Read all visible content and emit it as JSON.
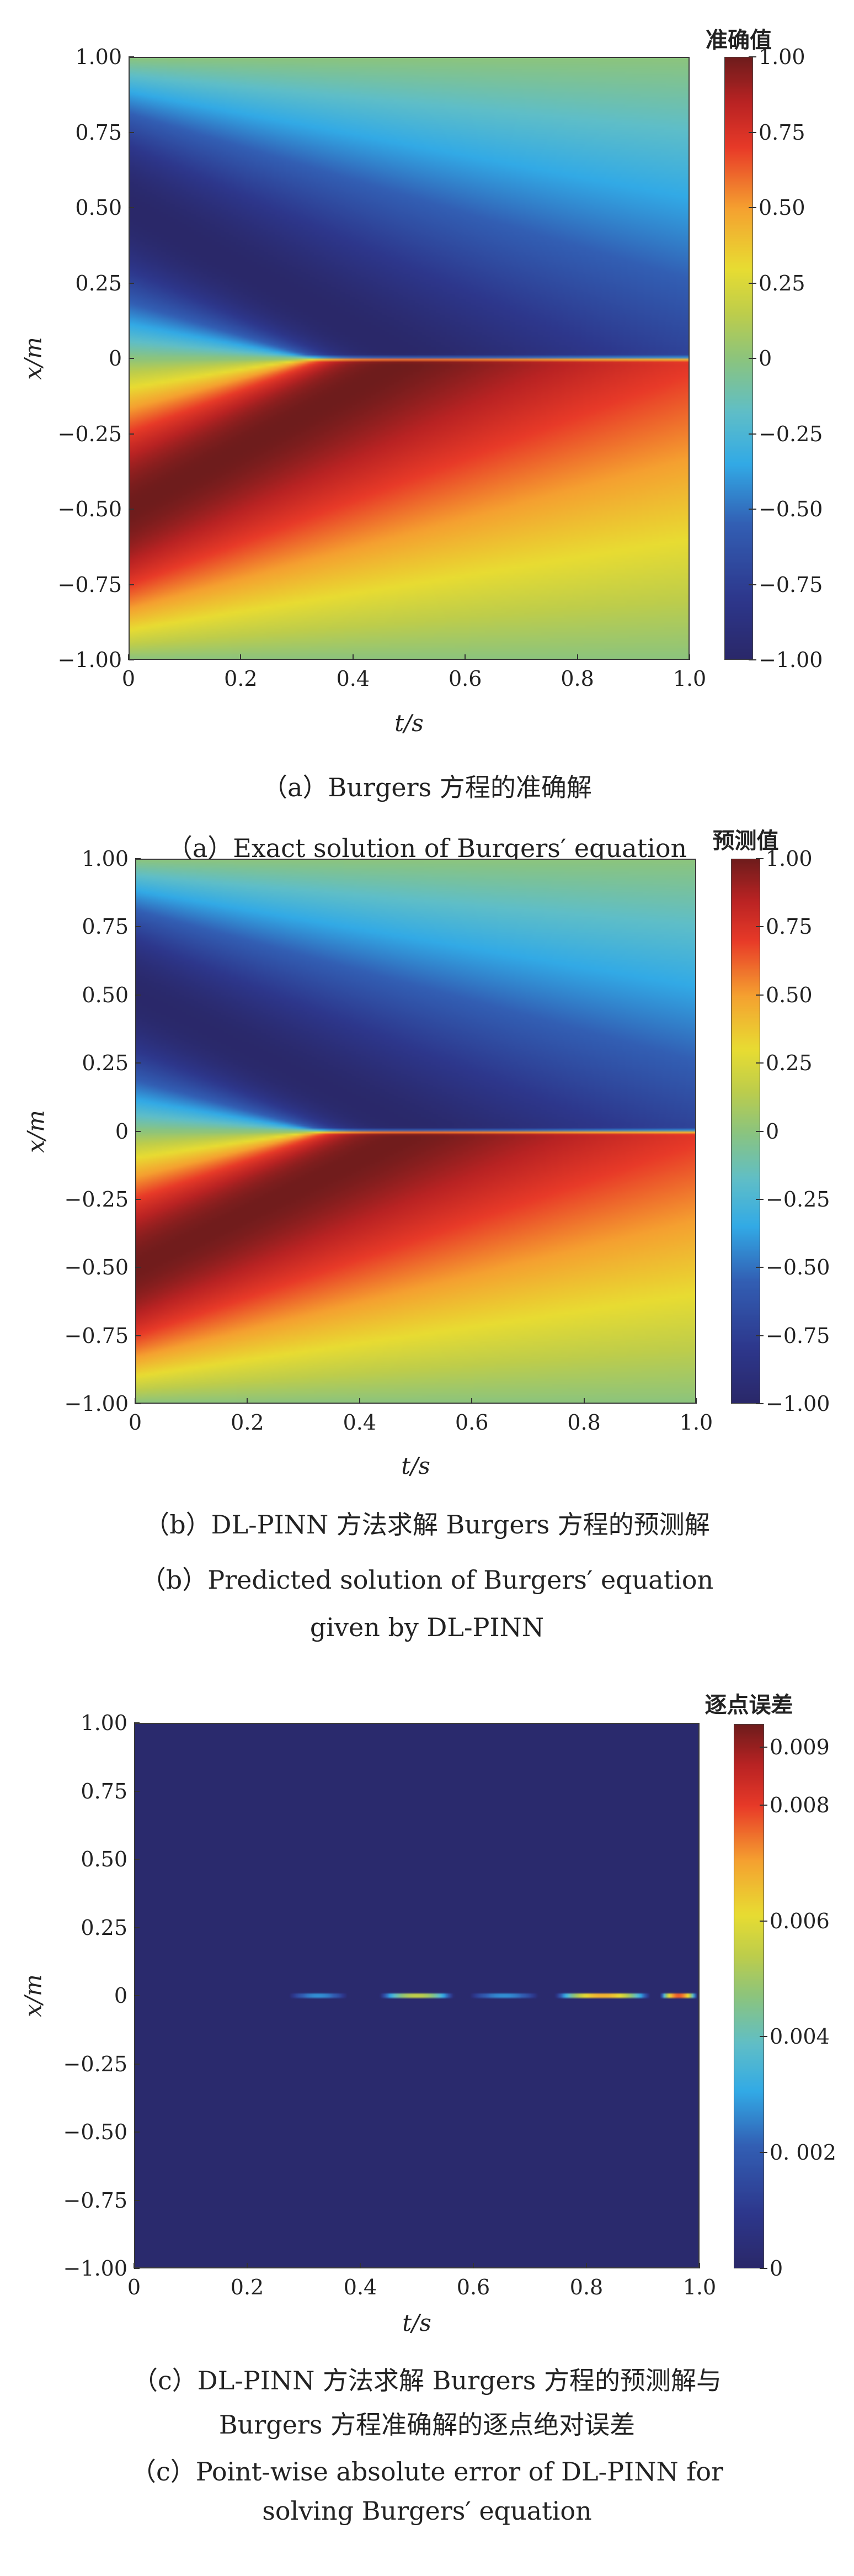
{
  "chart_data": [
    {
      "type": "heatmap",
      "id": "a",
      "xlabel": "t/s",
      "ylabel": "x/m",
      "xlim": [
        0,
        1.0
      ],
      "ylim": [
        -1.0,
        1.0
      ],
      "xticks": [
        "0",
        "0.2",
        "0.4",
        "0.6",
        "0.8",
        "1.0"
      ],
      "yticks": [
        "1.00",
        "0.75",
        "0.50",
        "0.25",
        "0",
        "−0.25",
        "−0.50",
        "−0.75",
        "−1.00"
      ],
      "colorbar": {
        "title": "准确值",
        "range": [
          -1.0,
          1.0
        ],
        "ticks": [
          "1.00",
          "0.75",
          "0.50",
          "0.25",
          "0",
          "−0.25",
          "−0.50",
          "−0.75",
          "−1.00"
        ]
      },
      "field": "burgers_exact",
      "captions": [
        "（a）Burgers 方程的准确解",
        "（a）Exact solution of Burgers′ equation"
      ]
    },
    {
      "type": "heatmap",
      "id": "b",
      "xlabel": "t/s",
      "ylabel": "x/m",
      "xlim": [
        0,
        1.0
      ],
      "ylim": [
        -1.0,
        1.0
      ],
      "xticks": [
        "0",
        "0.2",
        "0.4",
        "0.6",
        "0.8",
        "1.0"
      ],
      "yticks": [
        "1.00",
        "0.75",
        "0.50",
        "0.25",
        "0",
        "−0.25",
        "−0.50",
        "−0.75",
        "−1.00"
      ],
      "colorbar": {
        "title": "预测值",
        "range": [
          -1.0,
          1.0
        ],
        "ticks": [
          "1.00",
          "0.75",
          "0.50",
          "0.25",
          "0",
          "−0.25",
          "−0.50",
          "−0.75",
          "−1.00"
        ]
      },
      "field": "burgers_predicted",
      "captions": [
        "（b）DL-PINN 方法求解 Burgers 方程的预测解",
        "（b）Predicted solution of Burgers′ equation",
        "given by DL-PINN"
      ]
    },
    {
      "type": "heatmap",
      "id": "c",
      "xlabel": "t/s",
      "ylabel": "x/m",
      "xlim": [
        0,
        1.0
      ],
      "ylim": [
        -1.0,
        1.0
      ],
      "xticks": [
        "0",
        "0.2",
        "0.4",
        "0.6",
        "0.8",
        "1.0"
      ],
      "yticks": [
        "1.00",
        "0.75",
        "0.50",
        "0.25",
        "0",
        "−0.25",
        "−0.50",
        "−0.75",
        "−1.00"
      ],
      "colorbar": {
        "title": "逐点误差",
        "range": [
          0,
          0.0094
        ],
        "ticks": [
          "0.009",
          "0.008",
          "0.006",
          "0.004",
          "0. 002",
          "0"
        ],
        "tick_values": [
          0.009,
          0.008,
          0.006,
          0.004,
          0.002,
          0
        ]
      },
      "field": "pointwise_abs_error",
      "background_value": 0.0001,
      "error_streaks": [
        {
          "t": [
            0.27,
            0.38
          ],
          "x": 0.0,
          "peak": 0.003
        },
        {
          "t": [
            0.43,
            0.57
          ],
          "x": 0.0,
          "peak": 0.006
        },
        {
          "t": [
            0.59,
            0.72
          ],
          "x": 0.0,
          "peak": 0.003
        },
        {
          "t": [
            0.74,
            0.92
          ],
          "x": 0.0,
          "peak": 0.0075
        },
        {
          "t": [
            0.93,
            1.0
          ],
          "x": 0.0,
          "peak": 0.0085
        }
      ],
      "captions": [
        "（c）DL-PINN 方法求解 Burgers 方程的预测解与",
        "Burgers 方程准确解的逐点绝对误差",
        "（c）Point-wise absolute error of DL-PINN for",
        "solving Burgers′ equation"
      ]
    }
  ]
}
